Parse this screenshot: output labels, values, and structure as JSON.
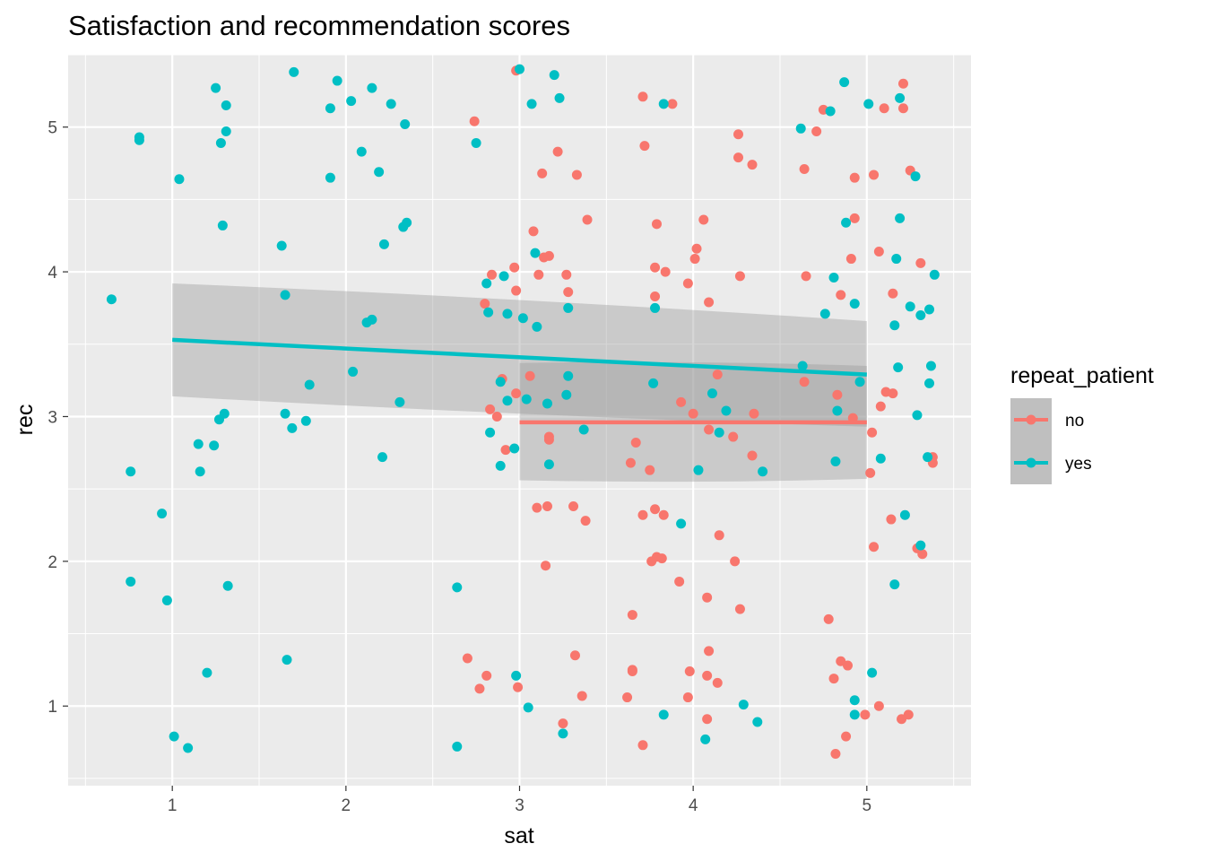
{
  "chart_data": {
    "type": "scatter",
    "title": "Satisfaction and recommendation scores",
    "xlabel": "sat",
    "ylabel": "rec",
    "xlim": [
      0.4,
      5.6
    ],
    "ylim": [
      0.45,
      5.5
    ],
    "x_ticks": [
      1,
      2,
      3,
      4,
      5
    ],
    "y_ticks": [
      1,
      2,
      3,
      4,
      5
    ],
    "x_tick_labels": [
      "1",
      "2",
      "3",
      "4",
      "5"
    ],
    "y_tick_labels": [
      "1",
      "2",
      "3",
      "4",
      "5"
    ],
    "grid": true,
    "legend": {
      "title": "repeat_patient",
      "position": "right"
    },
    "series": [
      {
        "name": "no",
        "color": "#F8766D",
        "points": [
          [
            2.98,
            5.39
          ],
          [
            2.74,
            5.04
          ],
          [
            3.71,
            5.21
          ],
          [
            3.88,
            5.16
          ],
          [
            3.72,
            4.87
          ],
          [
            3.22,
            4.83
          ],
          [
            3.13,
            4.68
          ],
          [
            3.33,
            4.67
          ],
          [
            4.26,
            4.95
          ],
          [
            4.26,
            4.79
          ],
          [
            4.34,
            4.74
          ],
          [
            3.39,
            4.36
          ],
          [
            3.79,
            4.33
          ],
          [
            4.06,
            4.36
          ],
          [
            3.08,
            4.28
          ],
          [
            3.14,
            4.1
          ],
          [
            3.17,
            4.11
          ],
          [
            4.02,
            4.16
          ],
          [
            4.01,
            4.09
          ],
          [
            3.11,
            3.98
          ],
          [
            3.27,
            3.98
          ],
          [
            2.97,
            4.03
          ],
          [
            2.84,
            3.98
          ],
          [
            3.78,
            4.03
          ],
          [
            3.84,
            4.0
          ],
          [
            3.97,
            3.92
          ],
          [
            4.27,
            3.97
          ],
          [
            3.28,
            3.86
          ],
          [
            2.98,
            3.87
          ],
          [
            2.8,
            3.78
          ],
          [
            3.78,
            3.83
          ],
          [
            4.09,
            3.79
          ],
          [
            2.9,
            3.26
          ],
          [
            3.06,
            3.28
          ],
          [
            2.98,
            3.16
          ],
          [
            4.14,
            3.29
          ],
          [
            3.93,
            3.1
          ],
          [
            4.0,
            3.02
          ],
          [
            2.83,
            3.05
          ],
          [
            2.87,
            3.0
          ],
          [
            4.35,
            3.02
          ],
          [
            4.09,
            2.91
          ],
          [
            4.23,
            2.86
          ],
          [
            3.17,
            2.84
          ],
          [
            3.17,
            2.86
          ],
          [
            3.67,
            2.82
          ],
          [
            2.92,
            2.77
          ],
          [
            4.34,
            2.73
          ],
          [
            3.64,
            2.68
          ],
          [
            3.75,
            2.63
          ],
          [
            3.1,
            2.37
          ],
          [
            3.16,
            2.38
          ],
          [
            3.31,
            2.38
          ],
          [
            3.38,
            2.28
          ],
          [
            3.71,
            2.32
          ],
          [
            3.78,
            2.36
          ],
          [
            3.83,
            2.32
          ],
          [
            4.15,
            2.18
          ],
          [
            3.79,
            2.03
          ],
          [
            3.15,
            1.97
          ],
          [
            3.76,
            2.0
          ],
          [
            3.82,
            2.02
          ],
          [
            4.24,
            2.0
          ],
          [
            3.92,
            1.86
          ],
          [
            4.08,
            1.75
          ],
          [
            4.27,
            1.67
          ],
          [
            3.65,
            1.63
          ],
          [
            2.7,
            1.33
          ],
          [
            3.32,
            1.35
          ],
          [
            4.09,
            1.38
          ],
          [
            2.81,
            1.21
          ],
          [
            2.77,
            1.12
          ],
          [
            2.99,
            1.13
          ],
          [
            3.65,
            1.25
          ],
          [
            3.65,
            1.24
          ],
          [
            3.98,
            1.24
          ],
          [
            4.08,
            1.21
          ],
          [
            4.14,
            1.16
          ],
          [
            3.36,
            1.07
          ],
          [
            3.62,
            1.06
          ],
          [
            3.97,
            1.06
          ],
          [
            3.25,
            0.88
          ],
          [
            4.08,
            0.91
          ],
          [
            3.71,
            0.73
          ],
          [
            5.21,
            5.3
          ],
          [
            4.75,
            5.12
          ],
          [
            5.1,
            5.13
          ],
          [
            5.21,
            5.13
          ],
          [
            4.71,
            4.97
          ],
          [
            5.04,
            4.67
          ],
          [
            4.64,
            4.71
          ],
          [
            4.93,
            4.65
          ],
          [
            5.25,
            4.7
          ],
          [
            4.93,
            4.37
          ],
          [
            5.07,
            4.14
          ],
          [
            4.91,
            4.09
          ],
          [
            5.31,
            4.06
          ],
          [
            4.65,
            3.97
          ],
          [
            4.85,
            3.84
          ],
          [
            5.15,
            3.85
          ],
          [
            4.64,
            3.24
          ],
          [
            5.11,
            3.17
          ],
          [
            5.15,
            3.16
          ],
          [
            4.83,
            3.15
          ],
          [
            4.92,
            2.99
          ],
          [
            5.08,
            3.07
          ],
          [
            5.03,
            2.89
          ],
          [
            5.38,
            2.72
          ],
          [
            5.38,
            2.68
          ],
          [
            5.02,
            2.61
          ],
          [
            5.14,
            2.29
          ],
          [
            5.04,
            2.1
          ],
          [
            5.29,
            2.09
          ],
          [
            5.32,
            2.05
          ],
          [
            4.78,
            1.6
          ],
          [
            4.85,
            1.31
          ],
          [
            4.89,
            1.28
          ],
          [
            4.81,
            1.19
          ],
          [
            5.07,
            1.0
          ],
          [
            4.99,
            0.94
          ],
          [
            5.2,
            0.91
          ],
          [
            5.24,
            0.94
          ],
          [
            4.88,
            0.79
          ],
          [
            4.82,
            0.67
          ]
        ],
        "fit": {
          "x": [
            3,
            5
          ],
          "y": [
            2.96,
            2.96
          ],
          "ci_lower": [
            2.56,
            2.57
          ],
          "ci_upper": [
            3.37,
            3.35
          ]
        }
      },
      {
        "name": "yes",
        "color": "#00BFC4",
        "points": [
          [
            0.65,
            3.81
          ],
          [
            0.76,
            2.62
          ],
          [
            0.76,
            1.86
          ],
          [
            0.81,
            4.93
          ],
          [
            0.81,
            4.91
          ],
          [
            0.94,
            2.33
          ],
          [
            0.97,
            1.73
          ],
          [
            1.01,
            0.79
          ],
          [
            1.04,
            4.64
          ],
          [
            1.09,
            0.71
          ],
          [
            1.15,
            2.81
          ],
          [
            1.16,
            2.62
          ],
          [
            1.2,
            1.23
          ],
          [
            1.24,
            2.8
          ],
          [
            1.25,
            5.27
          ],
          [
            1.28,
            4.89
          ],
          [
            1.27,
            2.98
          ],
          [
            1.29,
            4.32
          ],
          [
            1.31,
            5.15
          ],
          [
            1.31,
            4.97
          ],
          [
            1.3,
            3.02
          ],
          [
            1.32,
            1.83
          ],
          [
            1.63,
            4.18
          ],
          [
            1.65,
            3.84
          ],
          [
            1.65,
            3.02
          ],
          [
            1.66,
            1.32
          ],
          [
            1.69,
            2.92
          ],
          [
            1.7,
            5.38
          ],
          [
            1.77,
            2.97
          ],
          [
            1.79,
            3.22
          ],
          [
            1.91,
            5.13
          ],
          [
            1.91,
            4.65
          ],
          [
            1.95,
            5.32
          ],
          [
            2.03,
            5.18
          ],
          [
            2.04,
            3.31
          ],
          [
            2.09,
            4.83
          ],
          [
            2.12,
            3.65
          ],
          [
            2.15,
            5.27
          ],
          [
            2.15,
            3.67
          ],
          [
            2.19,
            4.69
          ],
          [
            2.21,
            2.72
          ],
          [
            2.22,
            4.19
          ],
          [
            2.26,
            5.16
          ],
          [
            2.31,
            3.1
          ],
          [
            2.33,
            4.31
          ],
          [
            2.34,
            5.02
          ],
          [
            2.35,
            4.34
          ],
          [
            2.64,
            1.82
          ],
          [
            2.64,
            0.72
          ],
          [
            2.75,
            4.89
          ],
          [
            2.81,
            3.92
          ],
          [
            2.82,
            3.72
          ],
          [
            2.83,
            2.89
          ],
          [
            2.89,
            3.24
          ],
          [
            2.89,
            2.66
          ],
          [
            2.91,
            3.97
          ],
          [
            2.93,
            3.71
          ],
          [
            2.93,
            3.11
          ],
          [
            2.97,
            2.78
          ],
          [
            2.98,
            1.21
          ],
          [
            3.0,
            5.4
          ],
          [
            3.02,
            3.68
          ],
          [
            3.04,
            3.12
          ],
          [
            3.05,
            0.99
          ],
          [
            3.07,
            5.16
          ],
          [
            3.09,
            4.13
          ],
          [
            3.1,
            3.62
          ],
          [
            3.16,
            3.09
          ],
          [
            3.17,
            2.67
          ],
          [
            3.2,
            5.36
          ],
          [
            3.23,
            5.2
          ],
          [
            3.25,
            0.81
          ],
          [
            3.27,
            3.15
          ],
          [
            3.28,
            3.75
          ],
          [
            3.28,
            3.28
          ],
          [
            3.37,
            2.91
          ],
          [
            3.77,
            3.23
          ],
          [
            3.78,
            3.75
          ],
          [
            3.83,
            5.16
          ],
          [
            3.83,
            0.94
          ],
          [
            3.93,
            2.26
          ],
          [
            4.03,
            2.63
          ],
          [
            4.07,
            0.77
          ],
          [
            4.11,
            3.16
          ],
          [
            4.15,
            2.89
          ],
          [
            4.19,
            3.04
          ],
          [
            4.29,
            1.01
          ],
          [
            4.37,
            0.89
          ],
          [
            4.4,
            2.62
          ],
          [
            4.62,
            4.99
          ],
          [
            4.63,
            3.35
          ],
          [
            4.76,
            3.71
          ],
          [
            4.79,
            5.11
          ],
          [
            4.81,
            3.96
          ],
          [
            4.82,
            2.69
          ],
          [
            4.83,
            3.04
          ],
          [
            4.87,
            5.31
          ],
          [
            4.88,
            4.34
          ],
          [
            4.93,
            3.78
          ],
          [
            4.93,
            1.04
          ],
          [
            4.93,
            0.94
          ],
          [
            4.96,
            3.24
          ],
          [
            5.01,
            5.16
          ],
          [
            5.03,
            1.23
          ],
          [
            5.08,
            2.71
          ],
          [
            5.16,
            3.63
          ],
          [
            5.16,
            1.84
          ],
          [
            5.17,
            4.09
          ],
          [
            5.18,
            3.34
          ],
          [
            5.19,
            4.37
          ],
          [
            5.19,
            5.2
          ],
          [
            5.22,
            2.32
          ],
          [
            5.25,
            3.76
          ],
          [
            5.28,
            4.66
          ],
          [
            5.29,
            3.01
          ],
          [
            5.31,
            3.7
          ],
          [
            5.31,
            2.11
          ],
          [
            5.35,
            2.72
          ],
          [
            5.36,
            3.23
          ],
          [
            5.36,
            3.74
          ],
          [
            5.37,
            3.35
          ],
          [
            5.39,
            3.98
          ]
        ],
        "fit": {
          "x": [
            1,
            5
          ],
          "y": [
            3.53,
            3.29
          ],
          "ci_lower": [
            3.14,
            2.93
          ],
          "ci_upper": [
            3.92,
            3.66
          ]
        }
      }
    ]
  }
}
